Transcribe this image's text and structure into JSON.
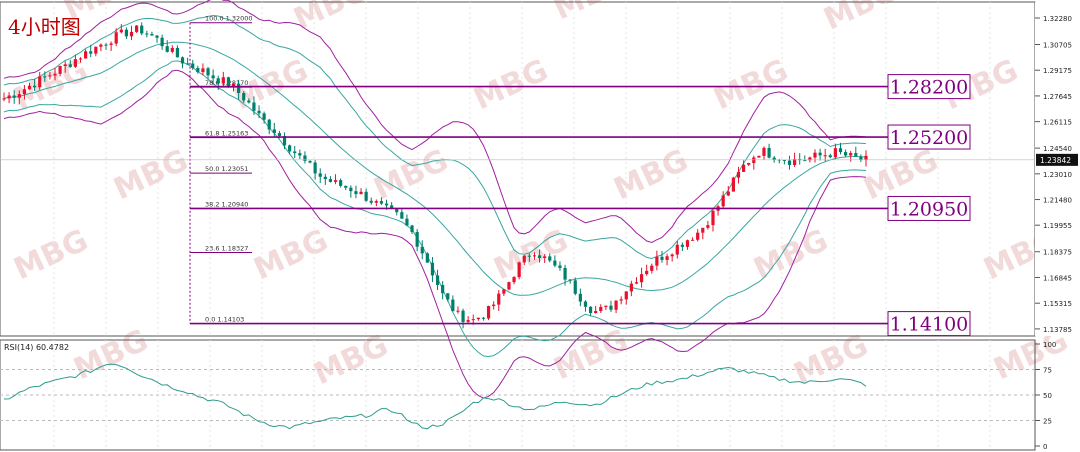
{
  "title": "4小时图",
  "watermark": "MBG",
  "price_axis": {
    "ticks": [
      "1.32280",
      "1.30705",
      "1.29175",
      "1.27645",
      "1.26115",
      "1.24540",
      "1.23010",
      "1.21480",
      "1.19955",
      "1.18375",
      "1.16845",
      "1.15315",
      "1.13785"
    ],
    "current_price": "1.23842"
  },
  "rsi": {
    "label": "RSI(14) 60.4782",
    "ticks": [
      "100",
      "75",
      "50",
      "25",
      "0"
    ]
  },
  "fib_levels": [
    {
      "label": "100.0  1.32000",
      "value": 1.32
    },
    {
      "label": "78.6  1.28170",
      "value": 1.2817
    },
    {
      "label": "61.8  1.25163",
      "value": 1.25163
    },
    {
      "label": "50.0  1.23051",
      "value": 1.23051
    },
    {
      "label": "38.2  1.20940",
      "value": 1.2094
    },
    {
      "label": "23.6  1.18327",
      "value": 1.18327
    },
    {
      "label": "0.0  1.14103",
      "value": 1.14103
    }
  ],
  "key_levels": [
    {
      "label": "1.28200",
      "value": 1.282
    },
    {
      "label": "1.25200",
      "value": 1.252
    },
    {
      "label": "1.20950",
      "value": 1.2095
    },
    {
      "label": "1.14100",
      "value": 1.141
    }
  ],
  "colors": {
    "up": "#e8112d",
    "down": "#00806b",
    "band_outer": "#a020a0",
    "band_inner": "#3aa6a0",
    "level_line": "#800080",
    "title": "#c00000",
    "rsi_line": "#2e9c8c"
  },
  "chart_data": {
    "type": "candlestick",
    "ylim": [
      1.136,
      1.324
    ],
    "price_path": [
      1.275,
      1.279,
      1.284,
      1.289,
      1.294,
      1.3,
      1.305,
      1.31,
      1.314,
      1.316,
      1.311,
      1.303,
      1.296,
      1.292,
      1.287,
      1.283,
      1.274,
      1.263,
      1.255,
      1.245,
      1.236,
      1.228,
      1.224,
      1.221,
      1.216,
      1.21,
      1.205,
      1.195,
      1.178,
      1.158,
      1.146,
      1.143,
      1.148,
      1.16,
      1.175,
      1.185,
      1.178,
      1.17,
      1.158,
      1.148,
      1.15,
      1.16,
      1.17,
      1.178,
      1.184,
      1.19,
      1.196,
      1.208,
      1.222,
      1.236,
      1.244,
      1.241,
      1.238,
      1.239,
      1.241,
      1.243,
      1.24,
      1.238
    ],
    "rsi_values": [
      45,
      52,
      58,
      62,
      66,
      70,
      75,
      82,
      78,
      70,
      64,
      58,
      54,
      48,
      44,
      38,
      30,
      24,
      20,
      18,
      22,
      24,
      27,
      28,
      30,
      35,
      34,
      22,
      18,
      22,
      30,
      42,
      48,
      44,
      38,
      36,
      40,
      44,
      42,
      40,
      46,
      52,
      58,
      62,
      64,
      66,
      70,
      74,
      76,
      73,
      70,
      66,
      64,
      62,
      64,
      66,
      64,
      60
    ],
    "rsi_ylim": [
      0,
      100
    ]
  }
}
